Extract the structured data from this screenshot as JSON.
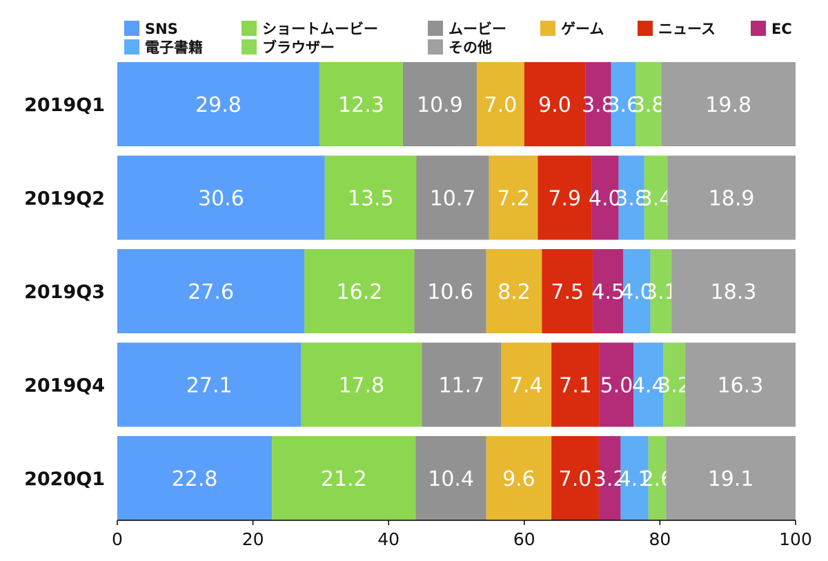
{
  "chart_data": {
    "type": "bar",
    "orientation": "horizontal",
    "stacked": true,
    "title": "",
    "xlabel": "",
    "ylabel": "",
    "xlim": [
      0,
      100
    ],
    "xticks": [
      0,
      20,
      40,
      60,
      80,
      100
    ],
    "legend_position": "top",
    "grid": false,
    "categories": [
      "2019Q1",
      "2019Q2",
      "2019Q3",
      "2019Q4",
      "2020Q1"
    ],
    "series": [
      {
        "name": "SNS",
        "color": "#5A9FFC",
        "values": [
          29.8,
          30.6,
          27.6,
          27.1,
          22.8
        ],
        "labels": [
          "29.8",
          "30.6",
          "27.6",
          "27.1",
          "22.8"
        ]
      },
      {
        "name": "ショートムービー",
        "color": "#8CD74F",
        "values": [
          12.3,
          13.5,
          16.2,
          17.8,
          21.2
        ],
        "labels": [
          "12.3",
          "13.5",
          "16.2",
          "17.8",
          "21.2"
        ]
      },
      {
        "name": "ムービー",
        "color": "#929292",
        "values": [
          10.9,
          10.7,
          10.6,
          11.7,
          10.4
        ],
        "labels": [
          "10.9",
          "10.7",
          "10.6",
          "11.7",
          "10.4"
        ]
      },
      {
        "name": "ゲーム",
        "color": "#E8B830",
        "values": [
          7.0,
          7.2,
          8.2,
          7.4,
          9.6
        ],
        "labels": [
          "7.0",
          "7.2",
          "8.2",
          "7.4",
          "9.6"
        ]
      },
      {
        "name": "ニュース",
        "color": "#D92B0E",
        "values": [
          9.0,
          7.9,
          7.5,
          7.1,
          7.0
        ],
        "labels": [
          "9.0",
          "7.9",
          "7.5",
          "7.1",
          "7.0"
        ]
      },
      {
        "name": "EC",
        "color": "#B42B78",
        "values": [
          3.8,
          4.0,
          4.5,
          5.0,
          3.2
        ],
        "labels": [
          "3.8",
          "4.0",
          "4.5",
          "5.0",
          "3.2"
        ]
      },
      {
        "name": "電子書籍",
        "color": "#5EADF7",
        "values": [
          3.6,
          3.8,
          4.0,
          4.4,
          4.1
        ],
        "labels": [
          "3.6",
          "3.8",
          "4.0",
          "4.4",
          "4.1"
        ]
      },
      {
        "name": "ブラウザー",
        "color": "#90D85A",
        "values": [
          3.8,
          3.4,
          3.1,
          3.2,
          2.6
        ],
        "labels": [
          "3.8",
          "3.4",
          "3.1",
          "3.2",
          "2.6"
        ]
      },
      {
        "name": "その他",
        "color": "#A0A0A0",
        "values": [
          19.8,
          18.9,
          18.3,
          16.3,
          19.1
        ],
        "labels": [
          "19.8",
          "18.9",
          "18.3",
          "16.3",
          "19.1"
        ]
      }
    ]
  }
}
